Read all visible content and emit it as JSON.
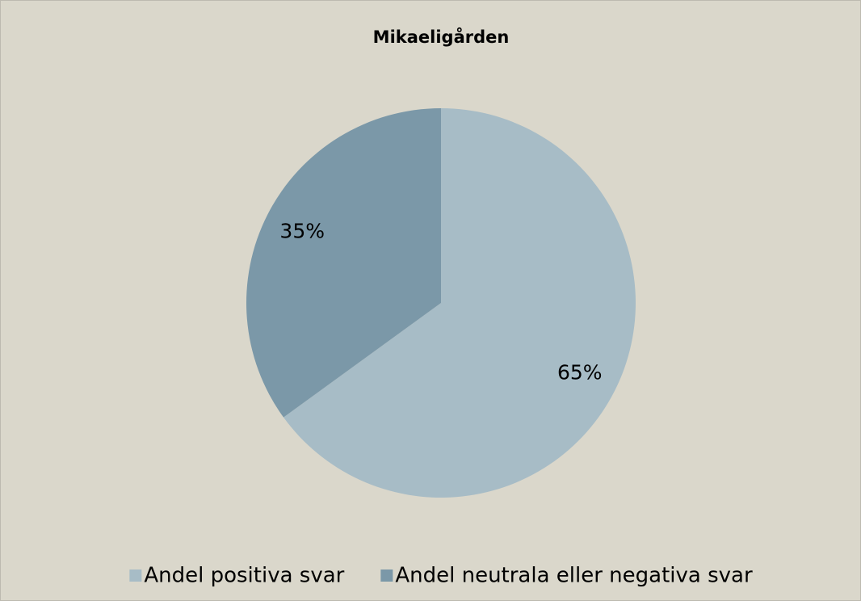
{
  "chart_data": {
    "type": "pie",
    "title": "Mikaeligården",
    "categories": [
      "Andel positiva svar",
      "Andel neutrala eller negativa svar"
    ],
    "values": [
      65,
      35
    ],
    "value_labels": [
      "65%",
      "35%"
    ],
    "colors": [
      "#a7bcc6",
      "#7b98a8"
    ]
  }
}
